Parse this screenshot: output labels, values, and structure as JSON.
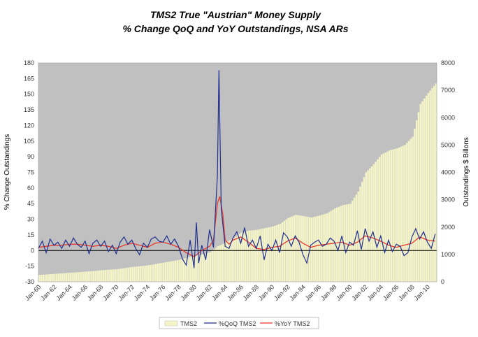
{
  "chart_data": {
    "type": "line",
    "title": "TMS2 True \"Austrian\" Money Supply",
    "subtitle": "% Change QoQ and YoY Outstandings, NSA ARs",
    "ylabel": "% Change Outstandings",
    "y2label": "Outstandings $ Billons",
    "ylim": [
      -30,
      180
    ],
    "y2lim": [
      0,
      8000
    ],
    "yticks": [
      -30,
      -15,
      0,
      15,
      30,
      45,
      60,
      75,
      90,
      105,
      120,
      135,
      150,
      165,
      180
    ],
    "y2ticks": [
      0,
      1000,
      2000,
      3000,
      4000,
      5000,
      6000,
      7000,
      8000
    ],
    "xlim": [
      1960.0,
      2011.2
    ],
    "xtick_labels": [
      "Jan-60",
      "Jan-62",
      "Jan-64",
      "Jan-66",
      "Jan-68",
      "Jan-70",
      "Jan-72",
      "Jan-74",
      "Jan-76",
      "Jan-78",
      "Jan-80",
      "Jan-82",
      "Jan-84",
      "Jan-86",
      "Jan-88",
      "Jan-90",
      "Jan-92",
      "Jan-94",
      "Jan-96",
      "Jan-98",
      "Jan-00",
      "Jan-02",
      "Jan-04",
      "Jan-06",
      "Jan-08",
      "Jan-10"
    ],
    "xtick_years": [
      1960,
      1962,
      1964,
      1966,
      1968,
      1970,
      1972,
      1974,
      1976,
      1978,
      1980,
      1982,
      1984,
      1986,
      1988,
      1990,
      1992,
      1994,
      1996,
      1998,
      2000,
      2002,
      2004,
      2006,
      2008,
      2010
    ],
    "plot_background": "#c0c0c0",
    "legend_position": "bottom",
    "series": [
      {
        "name": "TMS2",
        "axis": "right",
        "kind": "bar",
        "color": "#f5f5c8",
        "x": [
          1960,
          1962,
          1964,
          1966,
          1968,
          1970,
          1972,
          1974,
          1976,
          1978,
          1980,
          1981,
          1982,
          1983,
          1984,
          1985,
          1986,
          1987,
          1988,
          1989,
          1990,
          1991,
          1992,
          1993,
          1994,
          1995,
          1996,
          1997,
          1998,
          1999,
          2000,
          2001,
          2002,
          2003,
          2004,
          2005,
          2006,
          2007,
          2008,
          2009,
          2010,
          2011
        ],
        "y": [
          250,
          290,
          330,
          370,
          420,
          460,
          540,
          600,
          700,
          800,
          950,
          1000,
          1080,
          1300,
          1430,
          1600,
          1800,
          1870,
          1900,
          1960,
          2020,
          2120,
          2330,
          2450,
          2400,
          2350,
          2420,
          2500,
          2680,
          2800,
          2850,
          3300,
          4000,
          4300,
          4650,
          4800,
          4880,
          5000,
          5300,
          6500,
          6900,
          7250
        ]
      },
      {
        "name": "%QoQ TMS2",
        "axis": "left",
        "kind": "line",
        "color": "#1f2f8f",
        "x": [
          1960,
          1960.5,
          1961,
          1961.5,
          1962,
          1962.5,
          1963,
          1963.5,
          1964,
          1964.5,
          1965,
          1965.5,
          1966,
          1966.5,
          1967,
          1967.5,
          1968,
          1968.5,
          1969,
          1969.5,
          1970,
          1970.5,
          1971,
          1971.5,
          1972,
          1972.5,
          1973,
          1973.5,
          1974,
          1974.5,
          1975,
          1975.5,
          1976,
          1976.5,
          1977,
          1977.5,
          1978,
          1978.5,
          1979,
          1979.5,
          1980,
          1980.3,
          1980.6,
          1981,
          1981.5,
          1982,
          1982.5,
          1983.0,
          1983.2,
          1983.5,
          1984,
          1984.5,
          1985,
          1985.5,
          1986,
          1986.5,
          1987,
          1987.5,
          1988,
          1988.5,
          1989,
          1989.5,
          1990,
          1990.5,
          1991,
          1991.5,
          1992,
          1992.5,
          1993,
          1993.5,
          1994,
          1994.5,
          1995,
          1995.5,
          1996,
          1996.5,
          1997,
          1997.5,
          1998,
          1998.5,
          1999,
          1999.5,
          2000,
          2000.5,
          2001,
          2001.5,
          2002,
          2002.5,
          2003,
          2003.5,
          2004,
          2004.5,
          2005,
          2005.5,
          2006,
          2006.5,
          2007,
          2007.5,
          2008,
          2008.5,
          2009,
          2009.5,
          2010,
          2010.5,
          2011
        ],
        "y": [
          2,
          9,
          -2,
          11,
          5,
          8,
          2,
          10,
          4,
          12,
          6,
          3,
          9,
          -3,
          7,
          10,
          4,
          9,
          -1,
          5,
          -3,
          8,
          13,
          6,
          10,
          2,
          -4,
          7,
          3,
          11,
          13,
          9,
          8,
          14,
          6,
          11,
          4,
          -8,
          -14,
          10,
          -17,
          27,
          -12,
          5,
          -9,
          20,
          3,
          72,
          173,
          40,
          4,
          2,
          12,
          18,
          7,
          22,
          4,
          10,
          2,
          14,
          -9,
          6,
          0,
          10,
          -2,
          17,
          13,
          4,
          14,
          8,
          -4,
          -12,
          5,
          8,
          10,
          4,
          6,
          12,
          9,
          0,
          14,
          -2,
          8,
          5,
          19,
          1,
          21,
          9,
          18,
          3,
          14,
          -2,
          10,
          -1,
          6,
          4,
          -5,
          -2,
          13,
          21,
          11,
          18,
          8,
          2,
          16
        ]
      },
      {
        "name": "%YoY TMS2",
        "axis": "left",
        "kind": "line",
        "color": "#e83a2a",
        "x": [
          1960,
          1961,
          1962,
          1963,
          1964,
          1965,
          1966,
          1967,
          1968,
          1969,
          1970,
          1971,
          1972,
          1973,
          1974,
          1975,
          1976,
          1977,
          1978,
          1979,
          1980,
          1981,
          1982,
          1982.5,
          1983,
          1983.3,
          1983.7,
          1984,
          1984.5,
          1985,
          1986,
          1987,
          1988,
          1989,
          1990,
          1991,
          1992,
          1993,
          1994,
          1995,
          1996,
          1997,
          1998,
          1999,
          2000,
          2001,
          2002,
          2003,
          2004,
          2005,
          2006,
          2007,
          2008,
          2009,
          2010,
          2011
        ],
        "y": [
          3,
          4,
          5,
          5,
          6,
          6,
          5,
          4,
          5,
          4,
          2,
          5,
          7,
          5,
          3,
          7,
          8,
          6,
          3,
          -2,
          -6,
          0,
          4,
          10,
          45,
          52,
          35,
          10,
          6,
          10,
          13,
          8,
          2,
          1,
          3,
          4,
          9,
          12,
          7,
          3,
          5,
          6,
          7,
          8,
          5,
          8,
          14,
          12,
          9,
          5,
          3,
          5,
          7,
          13,
          10,
          9
        ]
      }
    ]
  }
}
